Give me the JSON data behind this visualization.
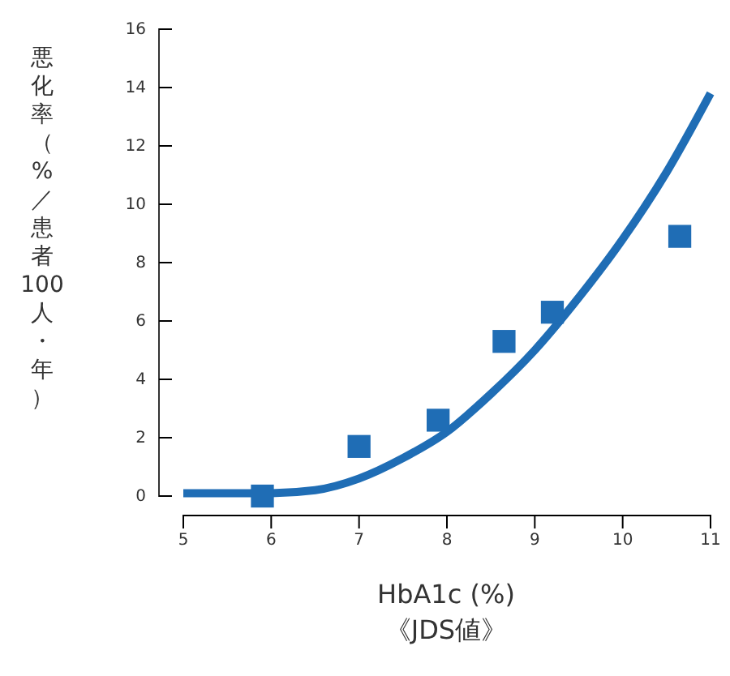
{
  "chart_data": {
    "type": "scatter",
    "xlabel": "HbA1c (%)\n《JDS値》",
    "ylabel": "悪化率（%／患者100人・年）",
    "xlim": [
      5,
      11
    ],
    "xticks": [
      5,
      6,
      7,
      8,
      9,
      10,
      11
    ],
    "ylim": [
      0,
      16
    ],
    "yticks": [
      0,
      2,
      4,
      6,
      8,
      10,
      12,
      14,
      16
    ],
    "series": [
      {
        "marker": "square",
        "color": "#1f6db5",
        "x": [
          5.9,
          7.0,
          7.9,
          8.65,
          9.2,
          10.65
        ],
        "values": [
          0,
          1.7,
          2.6,
          5.3,
          6.3,
          8.9
        ]
      },
      {
        "type": "line",
        "marker": "none",
        "color": "#1f6db5",
        "x": [
          5,
          5.5,
          6,
          6.5,
          7,
          7.5,
          8,
          8.5,
          9,
          9.5,
          10,
          10.5,
          11
        ],
        "values": [
          0.1,
          0.1,
          0.1,
          0.2,
          0.6,
          1.3,
          2.2,
          3.5,
          5.0,
          6.8,
          8.8,
          11.1,
          13.8
        ]
      }
    ]
  }
}
